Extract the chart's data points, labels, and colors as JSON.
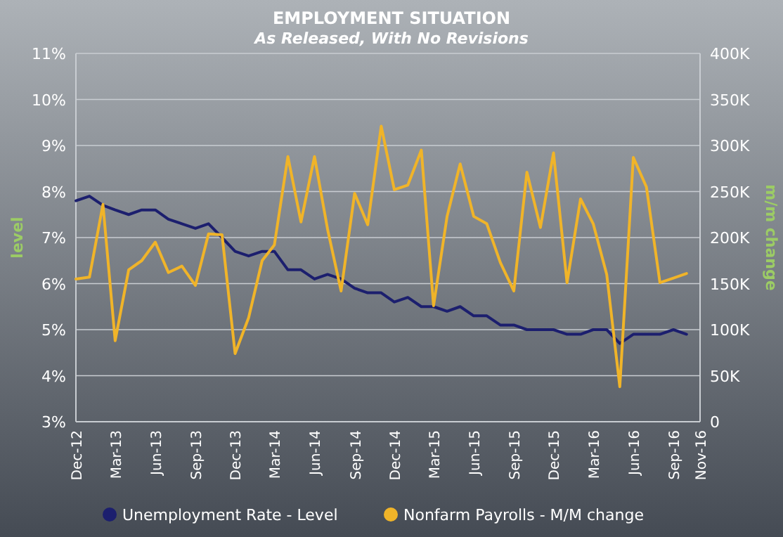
{
  "chart_data": {
    "type": "line",
    "title": "EMPLOYMENT SITUATION",
    "subtitle": "As Released, With No Revisions",
    "ylabel": "level",
    "y2label": "m/m change",
    "x": [
      "2012-12",
      "2013-01",
      "2013-02",
      "2013-03",
      "2013-04",
      "2013-05",
      "2013-06",
      "2013-07",
      "2013-08",
      "2013-09",
      "2013-10",
      "2013-11",
      "2013-12",
      "2014-01",
      "2014-02",
      "2014-03",
      "2014-04",
      "2014-05",
      "2014-06",
      "2014-07",
      "2014-08",
      "2014-09",
      "2014-10",
      "2014-11",
      "2014-12",
      "2015-01",
      "2015-02",
      "2015-03",
      "2015-04",
      "2015-05",
      "2015-06",
      "2015-07",
      "2015-08",
      "2015-09",
      "2015-10",
      "2015-11",
      "2015-12",
      "2016-01",
      "2016-02",
      "2016-03",
      "2016-04",
      "2016-05",
      "2016-06",
      "2016-07",
      "2016-08",
      "2016-09",
      "2016-10"
    ],
    "series": [
      {
        "name": "Unemployment Rate - Level",
        "color": "#1c1f6e",
        "values": [
          7.8,
          7.9,
          7.7,
          7.6,
          7.5,
          7.6,
          7.6,
          7.4,
          7.3,
          7.2,
          7.3,
          7.0,
          6.7,
          6.6,
          6.7,
          6.7,
          6.3,
          6.3,
          6.1,
          6.2,
          6.1,
          5.9,
          5.8,
          5.8,
          5.6,
          5.7,
          5.5,
          5.5,
          5.4,
          5.5,
          5.3,
          5.3,
          5.1,
          5.1,
          5.0,
          5.0,
          5.0,
          4.9,
          4.9,
          5.0,
          5.0,
          4.7,
          4.9,
          4.9,
          4.9,
          5.0,
          4.9
        ]
      },
      {
        "name": "Nonfarm Payrolls - M/M change",
        "color": "#f0b429",
        "axis": "y2",
        "values": [
          155000,
          157000,
          236000,
          88000,
          165000,
          175000,
          195000,
          162000,
          169000,
          148000,
          204000,
          203000,
          74000,
          113000,
          175000,
          192000,
          288000,
          217000,
          288000,
          209000,
          142000,
          248000,
          214000,
          321000,
          252000,
          257000,
          295000,
          126000,
          223000,
          280000,
          223000,
          215000,
          173000,
          142000,
          271000,
          211000,
          292000,
          151000,
          242000,
          215000,
          160000,
          38000,
          287000,
          255000,
          151000,
          156000,
          161000
        ]
      }
    ],
    "xlim": [
      "2012-12",
      "2016-11"
    ],
    "xticks": [
      {
        "value": "2012-12",
        "label": "Dec-12"
      },
      {
        "value": "2013-03",
        "label": "Mar-13"
      },
      {
        "value": "2013-06",
        "label": "Jun-13"
      },
      {
        "value": "2013-09",
        "label": "Sep-13"
      },
      {
        "value": "2013-12",
        "label": "Dec-13"
      },
      {
        "value": "2014-03",
        "label": "Mar-14"
      },
      {
        "value": "2014-06",
        "label": "Jun-14"
      },
      {
        "value": "2014-09",
        "label": "Sep-14"
      },
      {
        "value": "2014-12",
        "label": "Dec-14"
      },
      {
        "value": "2015-03",
        "label": "Mar-15"
      },
      {
        "value": "2015-06",
        "label": "Jun-15"
      },
      {
        "value": "2015-09",
        "label": "Sep-15"
      },
      {
        "value": "2015-12",
        "label": "Dec-15"
      },
      {
        "value": "2016-03",
        "label": "Mar-16"
      },
      {
        "value": "2016-06",
        "label": "Jun-16"
      },
      {
        "value": "2016-09",
        "label": "Sep-16"
      },
      {
        "value": "2016-11",
        "label": "Nov-16"
      }
    ],
    "ylim": [
      3,
      11
    ],
    "yticks": [
      {
        "value": 3,
        "label": "3%"
      },
      {
        "value": 4,
        "label": "4%"
      },
      {
        "value": 5,
        "label": "5%"
      },
      {
        "value": 6,
        "label": "6%"
      },
      {
        "value": 7,
        "label": "7%"
      },
      {
        "value": 8,
        "label": "8%"
      },
      {
        "value": 9,
        "label": "9%"
      },
      {
        "value": 10,
        "label": "10%"
      },
      {
        "value": 11,
        "label": "11%"
      }
    ],
    "y2lim": [
      0,
      400000
    ],
    "y2ticks": [
      0,
      {
        "value": 50000,
        "label": "50K"
      },
      {
        "value": 100000,
        "label": "100K"
      },
      {
        "value": 150000,
        "label": "150K"
      },
      {
        "value": 200000,
        "label": "200K"
      },
      {
        "value": 250000,
        "label": "250K"
      },
      {
        "value": 300000,
        "label": "300K"
      },
      {
        "value": 350000,
        "label": "350K"
      },
      {
        "value": 400000,
        "label": "400K"
      }
    ],
    "grid": "y",
    "legend": "bottom",
    "marker": "none",
    "line_style": "solid"
  }
}
